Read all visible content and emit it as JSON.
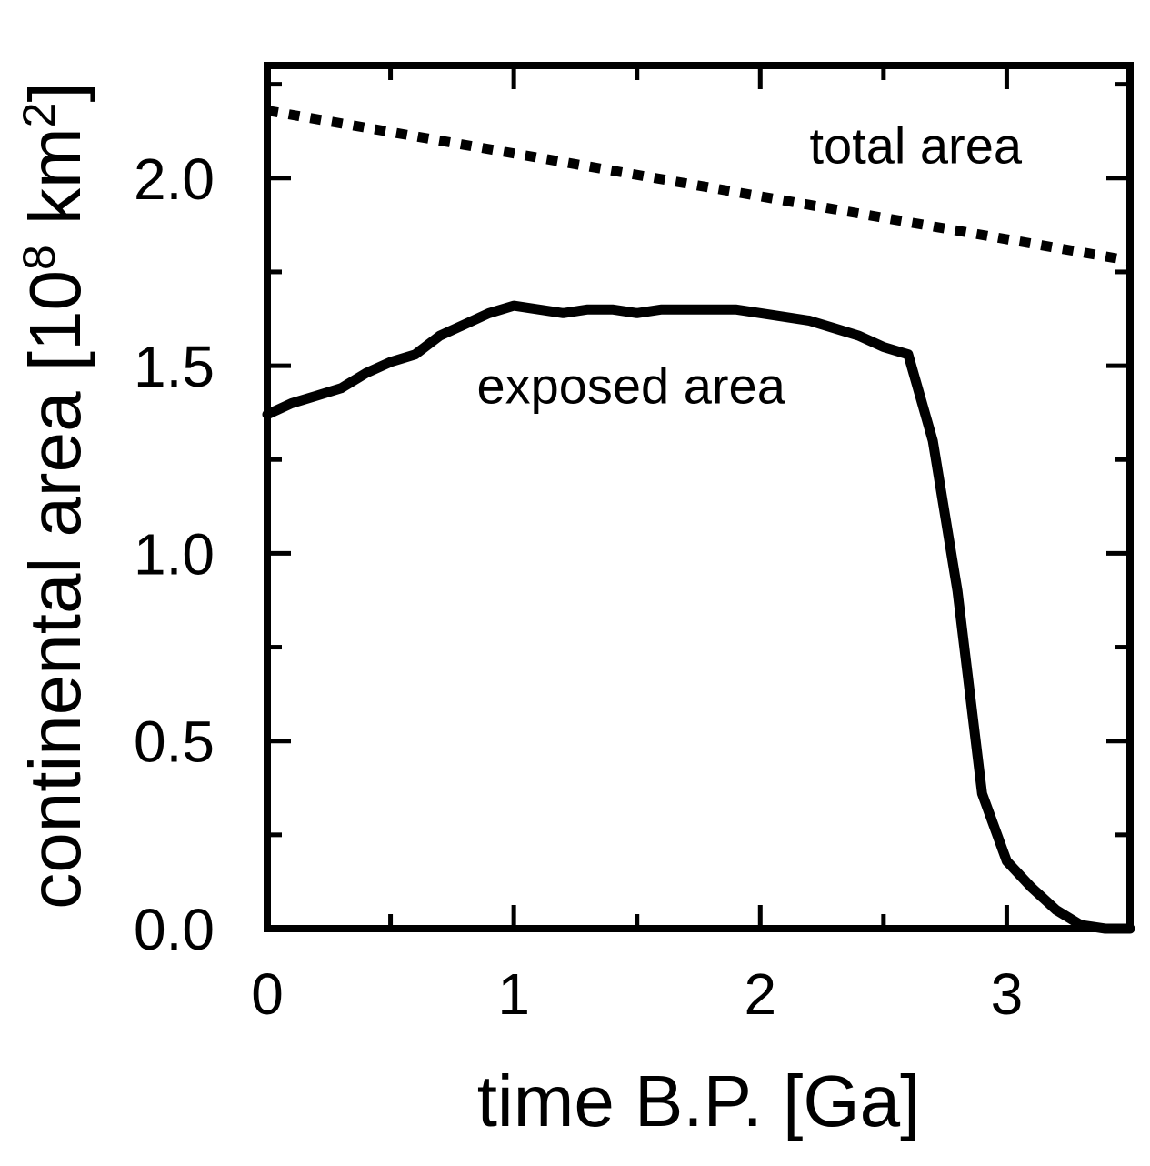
{
  "chart_data": {
    "type": "line",
    "xlabel": "time B.P. [Ga]",
    "ylabel_parts": {
      "base": "continental area [10",
      "exp1": "8",
      "mid": " km",
      "exp2": "2",
      "end": "]"
    },
    "xlim": [
      0,
      3.5
    ],
    "ylim": [
      0,
      2.3
    ],
    "x_major_ticks": [
      0,
      1,
      2,
      3
    ],
    "x_tick_labels": [
      "0",
      "1",
      "2",
      "3"
    ],
    "x_minor_step": 0.5,
    "y_major_ticks": [
      0.0,
      0.5,
      1.0,
      1.5,
      2.0
    ],
    "y_tick_labels": [
      "0.0",
      "0.5",
      "1.0",
      "1.5",
      "2.0"
    ],
    "y_minor_step": 0.25,
    "grid": false,
    "series": [
      {
        "name": "total area",
        "style": "dotted",
        "color": "#000000",
        "x": [
          0,
          3.5
        ],
        "y": [
          2.18,
          1.78
        ]
      },
      {
        "name": "exposed area",
        "style": "solid",
        "color": "#000000",
        "x": [
          0,
          0.1,
          0.2,
          0.3,
          0.4,
          0.5,
          0.6,
          0.7,
          0.8,
          0.9,
          1.0,
          1.1,
          1.2,
          1.3,
          1.4,
          1.5,
          1.6,
          1.7,
          1.8,
          1.9,
          2.0,
          2.1,
          2.2,
          2.3,
          2.4,
          2.5,
          2.6,
          2.7,
          2.8,
          2.9,
          3.0,
          3.1,
          3.2,
          3.3,
          3.4,
          3.5
        ],
        "y": [
          1.37,
          1.4,
          1.42,
          1.44,
          1.48,
          1.51,
          1.53,
          1.58,
          1.61,
          1.64,
          1.66,
          1.65,
          1.64,
          1.65,
          1.65,
          1.64,
          1.65,
          1.65,
          1.65,
          1.65,
          1.64,
          1.63,
          1.62,
          1.6,
          1.58,
          1.55,
          1.53,
          1.3,
          0.9,
          0.36,
          0.18,
          0.11,
          0.05,
          0.01,
          0.0,
          0.0
        ]
      }
    ],
    "annotations": [
      {
        "text": "total area",
        "x": 2.2,
        "y": 2.04
      },
      {
        "text": "exposed area",
        "x": 0.85,
        "y": 1.4
      }
    ]
  }
}
